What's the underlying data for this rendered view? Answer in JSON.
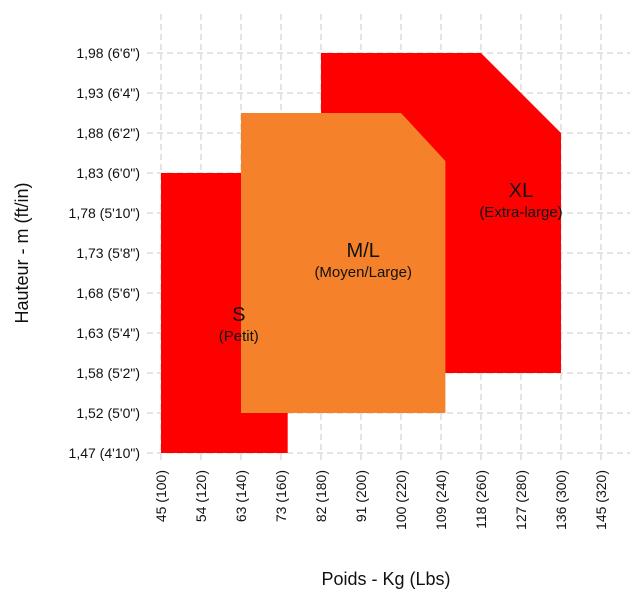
{
  "chart_data": {
    "type": "area",
    "title": "",
    "xlabel": "Poids - Kg (Lbs)",
    "ylabel": "Hauteur - m (ft/in)",
    "x_ticks": [
      "45 (100)",
      "54 (120)",
      "63 (140)",
      "73 (160)",
      "82 (180)",
      "91 (200)",
      "100 (220)",
      "109 (240)",
      "118 (260)",
      "127 (280)",
      "136 (300)",
      "145 (320)"
    ],
    "y_ticks": [
      "1,47 (4'10\")",
      "1,52 (5'0\")",
      "1,58 (5'2\")",
      "1,63 (5'4\")",
      "1,68 (5'6\")",
      "1,73 (5'8\")",
      "1,78 (5'10\")",
      "1,83 (6'0\")",
      "1,88 (6'2\")",
      "1,93 (6'4\")",
      "1,98 (6'6\")"
    ],
    "grid": true,
    "colors": {
      "S": "#ff0000",
      "ML": "#f5822a",
      "XL": "#ff0000"
    },
    "sizes": {
      "S": {
        "name": "S",
        "desc": "(Petit)"
      },
      "ML": {
        "name": "M/L",
        "desc": "(Moyen/Large)"
      },
      "XL": {
        "name": "XL",
        "desc": "(Extra-large)"
      }
    },
    "regions": [
      {
        "key": "XL",
        "polygon": [
          [
            82,
            1.98
          ],
          [
            118,
            1.98
          ],
          [
            136,
            1.88
          ],
          [
            136,
            1.58
          ],
          [
            82,
            1.58
          ]
        ]
      },
      {
        "key": "S",
        "polygon": [
          [
            45,
            1.83
          ],
          [
            63,
            1.83
          ],
          [
            74.5,
            1.765
          ],
          [
            74.5,
            1.47
          ],
          [
            45,
            1.47
          ]
        ]
      },
      {
        "key": "ML",
        "polygon": [
          [
            63,
            1.905
          ],
          [
            100,
            1.905
          ],
          [
            110,
            1.845
          ],
          [
            110,
            1.52
          ],
          [
            63,
            1.52
          ]
        ]
      }
    ],
    "labels": [
      {
        "key": "S",
        "x": 62.5,
        "y": 1.645
      },
      {
        "key": "ML",
        "x": 91.5,
        "y": 1.725
      },
      {
        "key": "XL",
        "x": 127,
        "y": 1.8
      }
    ]
  }
}
